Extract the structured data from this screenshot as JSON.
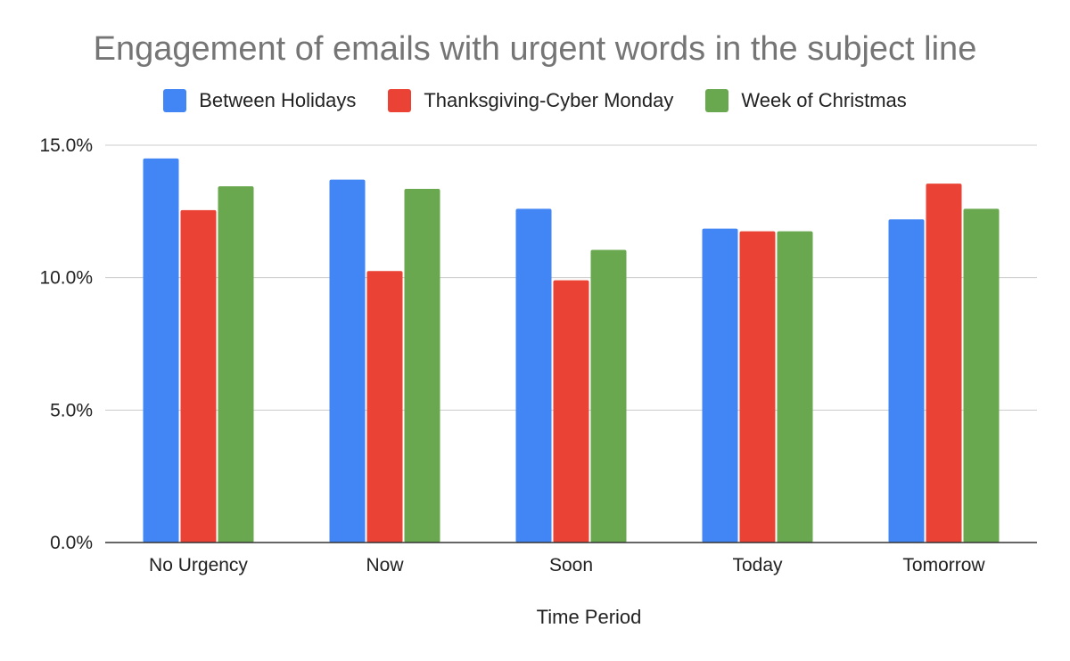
{
  "chart_data": {
    "type": "bar",
    "title": "Engagement of emails with urgent words in the subject line",
    "xlabel": "Time Period",
    "ylabel": "",
    "categories": [
      "No Urgency",
      "Now",
      "Soon",
      "Today",
      "Tomorrow"
    ],
    "series": [
      {
        "name": "Between Holidays",
        "color": "#4285f4",
        "values": [
          14.5,
          13.7,
          12.6,
          11.85,
          12.2
        ]
      },
      {
        "name": "Thanksgiving-Cyber Monday",
        "color": "#ea4335",
        "values": [
          12.55,
          10.25,
          9.9,
          11.75,
          13.55
        ]
      },
      {
        "name": "Week of Christmas",
        "color": "#6aa84f",
        "values": [
          13.45,
          13.35,
          11.05,
          11.75,
          12.6
        ]
      }
    ],
    "ylim": [
      0,
      15
    ],
    "yticks": [
      "0.0%",
      "5.0%",
      "10.0%",
      "15.0%"
    ],
    "ytick_values": [
      0,
      5,
      10,
      15
    ],
    "grid": true,
    "legend_position": "top"
  }
}
